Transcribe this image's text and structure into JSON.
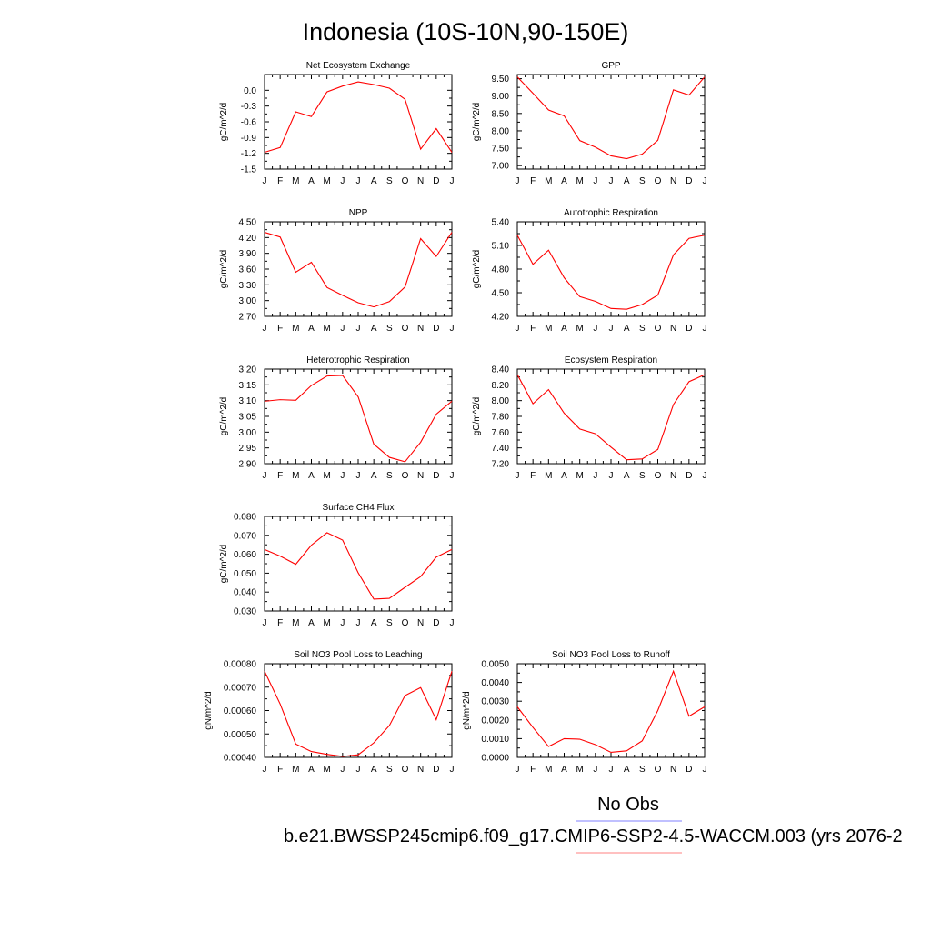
{
  "figure": {
    "title": "Indonesia (10S-10N,90-150E)",
    "legend": {
      "label": "No Obs",
      "line_color": "#8080ff"
    },
    "case_label": "b.e21.BWSSP245cmip6.f09_g17.CMIP6-SSP2-4.5-WACCM.003 (yrs 2076-2",
    "case_line_color": "#ff8080"
  },
  "chart_data": [
    {
      "type": "line",
      "title": "Net Ecosystem Exchange",
      "ylabel": "gC/m^2/d",
      "categories": [
        "J",
        "F",
        "M",
        "A",
        "M",
        "J",
        "J",
        "A",
        "S",
        "O",
        "N",
        "D",
        "J"
      ],
      "ylim": [
        -1.5,
        0.3
      ],
      "yticks": [
        -1.5,
        -1.2,
        -0.9,
        -0.6,
        -0.3,
        0.0
      ],
      "ytick_labels": [
        "-1.5",
        "-1.2",
        "-0.9",
        "-0.6",
        "-0.3",
        "0.0"
      ],
      "series": [
        {
          "color": "#ff0000",
          "values": [
            -1.18,
            -1.09,
            -0.41,
            -0.5,
            -0.03,
            0.08,
            0.16,
            0.11,
            0.04,
            -0.17,
            -1.12,
            -0.73,
            -1.18
          ]
        }
      ]
    },
    {
      "type": "line",
      "title": "GPP",
      "ylabel": "gC/m^2/d",
      "categories": [
        "J",
        "F",
        "M",
        "A",
        "M",
        "J",
        "J",
        "A",
        "S",
        "O",
        "N",
        "D",
        "J"
      ],
      "ylim": [
        6.9,
        9.62
      ],
      "yticks": [
        7.0,
        7.5,
        8.0,
        8.5,
        9.0,
        9.5
      ],
      "ytick_labels": [
        "7.00",
        "7.50",
        "8.00",
        "8.50",
        "9.00",
        "9.50"
      ],
      "series": [
        {
          "color": "#ff0000",
          "values": [
            9.55,
            9.08,
            8.6,
            8.43,
            7.72,
            7.53,
            7.28,
            7.2,
            7.33,
            7.73,
            9.18,
            9.03,
            9.55
          ]
        }
      ]
    },
    {
      "type": "line",
      "title": "NPP",
      "ylabel": "gC/m^2/d",
      "categories": [
        "J",
        "F",
        "M",
        "A",
        "M",
        "J",
        "J",
        "A",
        "S",
        "O",
        "N",
        "D",
        "J"
      ],
      "ylim": [
        2.7,
        4.5
      ],
      "yticks": [
        2.7,
        3.0,
        3.3,
        3.6,
        3.9,
        4.2,
        4.5
      ],
      "ytick_labels": [
        "2.70",
        "3.00",
        "3.30",
        "3.60",
        "3.90",
        "4.20",
        "4.50"
      ],
      "series": [
        {
          "color": "#ff0000",
          "values": [
            4.3,
            4.21,
            3.54,
            3.73,
            3.25,
            3.1,
            2.96,
            2.88,
            2.98,
            3.26,
            4.18,
            3.84,
            4.3
          ]
        }
      ]
    },
    {
      "type": "line",
      "title": "Autotrophic Respiration",
      "ylabel": "gC/m^2/d",
      "categories": [
        "J",
        "F",
        "M",
        "A",
        "M",
        "J",
        "J",
        "A",
        "S",
        "O",
        "N",
        "D",
        "J"
      ],
      "ylim": [
        4.2,
        5.4
      ],
      "yticks": [
        4.2,
        4.5,
        4.8,
        5.1,
        5.4
      ],
      "ytick_labels": [
        "4.20",
        "4.50",
        "4.80",
        "5.10",
        "5.40"
      ],
      "series": [
        {
          "color": "#ff0000",
          "values": [
            5.23,
            4.86,
            5.04,
            4.69,
            4.45,
            4.39,
            4.3,
            4.29,
            4.35,
            4.47,
            4.98,
            5.19,
            5.23
          ]
        }
      ]
    },
    {
      "type": "line",
      "title": "Heterotrophic Respiration",
      "ylabel": "gC/m^2/d",
      "categories": [
        "J",
        "F",
        "M",
        "A",
        "M",
        "J",
        "J",
        "A",
        "S",
        "O",
        "N",
        "D",
        "J"
      ],
      "ylim": [
        2.9,
        3.2
      ],
      "yticks": [
        2.9,
        2.95,
        3.0,
        3.05,
        3.1,
        3.15,
        3.2
      ],
      "ytick_labels": [
        "2.90",
        "2.95",
        "3.00",
        "3.05",
        "3.10",
        "3.15",
        "3.20"
      ],
      "series": [
        {
          "color": "#ff0000",
          "values": [
            3.098,
            3.103,
            3.101,
            3.148,
            3.178,
            3.18,
            3.112,
            2.962,
            2.92,
            2.906,
            2.968,
            3.057,
            3.098
          ]
        }
      ]
    },
    {
      "type": "line",
      "title": "Ecosystem Respiration",
      "ylabel": "gC/m^2/d",
      "categories": [
        "J",
        "F",
        "M",
        "A",
        "M",
        "J",
        "J",
        "A",
        "S",
        "O",
        "N",
        "D",
        "J"
      ],
      "ylim": [
        7.2,
        8.4
      ],
      "yticks": [
        7.2,
        7.4,
        7.6,
        7.8,
        8.0,
        8.2,
        8.4
      ],
      "ytick_labels": [
        "7.20",
        "7.40",
        "7.60",
        "7.80",
        "8.00",
        "8.20",
        "8.40"
      ],
      "series": [
        {
          "color": "#ff0000",
          "values": [
            8.33,
            7.96,
            8.14,
            7.84,
            7.64,
            7.58,
            7.41,
            7.25,
            7.26,
            7.38,
            7.95,
            8.24,
            8.33
          ]
        }
      ]
    },
    {
      "type": "line",
      "title": "Surface CH4 Flux",
      "ylabel": "gC/m^2/d",
      "categories": [
        "J",
        "F",
        "M",
        "A",
        "M",
        "J",
        "J",
        "A",
        "S",
        "O",
        "N",
        "D",
        "J"
      ],
      "ylim": [
        0.03,
        0.08
      ],
      "yticks": [
        0.03,
        0.04,
        0.05,
        0.06,
        0.07,
        0.08
      ],
      "ytick_labels": [
        "0.030",
        "0.040",
        "0.050",
        "0.060",
        "0.070",
        "0.080"
      ],
      "series": [
        {
          "color": "#ff0000",
          "values": [
            0.0625,
            0.059,
            0.0547,
            0.0648,
            0.0714,
            0.0675,
            0.0502,
            0.0363,
            0.0367,
            0.0425,
            0.0482,
            0.0585,
            0.0625
          ]
        }
      ]
    },
    {
      "type": "line",
      "title": "Soil NO3 Pool Loss to Leaching",
      "ylabel": "gN/m^2/d",
      "categories": [
        "J",
        "F",
        "M",
        "A",
        "M",
        "J",
        "J",
        "A",
        "S",
        "O",
        "N",
        "D",
        "J"
      ],
      "ylim": [
        0.0004,
        0.0008
      ],
      "yticks": [
        0.0004,
        0.0005,
        0.0006,
        0.0007,
        0.0008
      ],
      "ytick_labels": [
        "0.00040",
        "0.00050",
        "0.00060",
        "0.00070",
        "0.00080"
      ],
      "series": [
        {
          "color": "#ff0000",
          "values": [
            0.000768,
            0.000628,
            0.000457,
            0.000425,
            0.000413,
            0.000404,
            0.000411,
            0.000462,
            0.000536,
            0.000664,
            0.000698,
            0.000561,
            0.000768
          ]
        }
      ]
    },
    {
      "type": "line",
      "title": "Soil NO3 Pool Loss to Runoff",
      "ylabel": "gN/m^2/d",
      "categories": [
        "J",
        "F",
        "M",
        "A",
        "M",
        "J",
        "J",
        "A",
        "S",
        "O",
        "N",
        "D",
        "J"
      ],
      "ylim": [
        0.0,
        0.005
      ],
      "yticks": [
        0.0,
        0.001,
        0.002,
        0.003,
        0.004,
        0.005
      ],
      "ytick_labels": [
        "0.0000",
        "0.0010",
        "0.0020",
        "0.0030",
        "0.0040",
        "0.0050"
      ],
      "series": [
        {
          "color": "#ff0000",
          "values": [
            0.0027,
            0.0016,
            0.00058,
            0.001,
            0.00097,
            0.00068,
            0.00027,
            0.00035,
            0.00088,
            0.0025,
            0.0046,
            0.0022,
            0.0027
          ]
        }
      ]
    }
  ]
}
